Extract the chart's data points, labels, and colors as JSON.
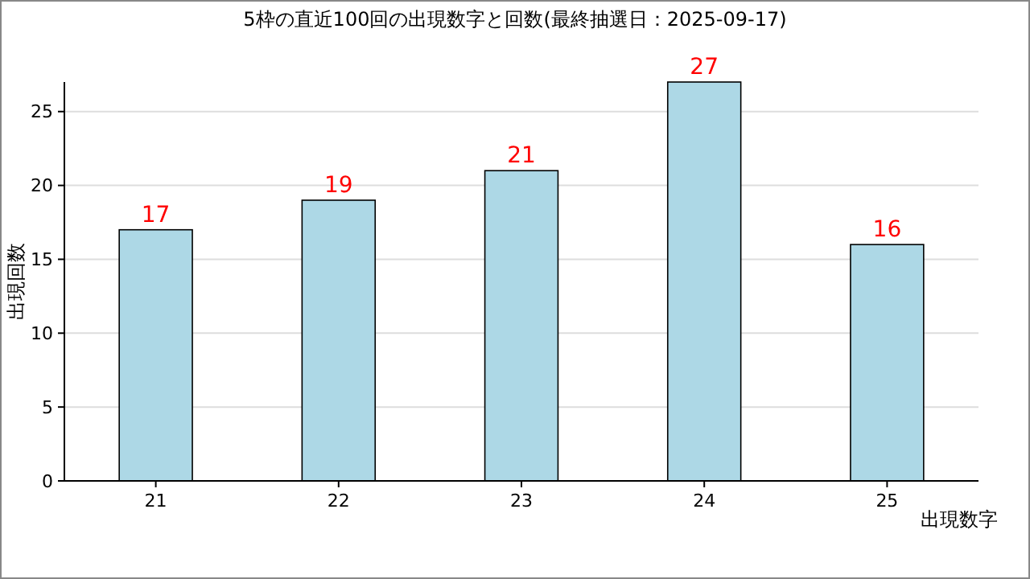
{
  "chart_data": {
    "type": "bar",
    "title": "5枠の直近100回の出現数字と回数(最終抽選日：2025-09-17)",
    "xlabel": "出現数字",
    "ylabel": "出現回数",
    "categories": [
      "21",
      "22",
      "23",
      "24",
      "25"
    ],
    "values": [
      17,
      19,
      21,
      27,
      16
    ],
    "color": "#add8e6",
    "ylim": [
      0,
      27
    ],
    "yticks": [
      0,
      5,
      10,
      15,
      20,
      25
    ],
    "grid": "y",
    "data_labels": true
  }
}
